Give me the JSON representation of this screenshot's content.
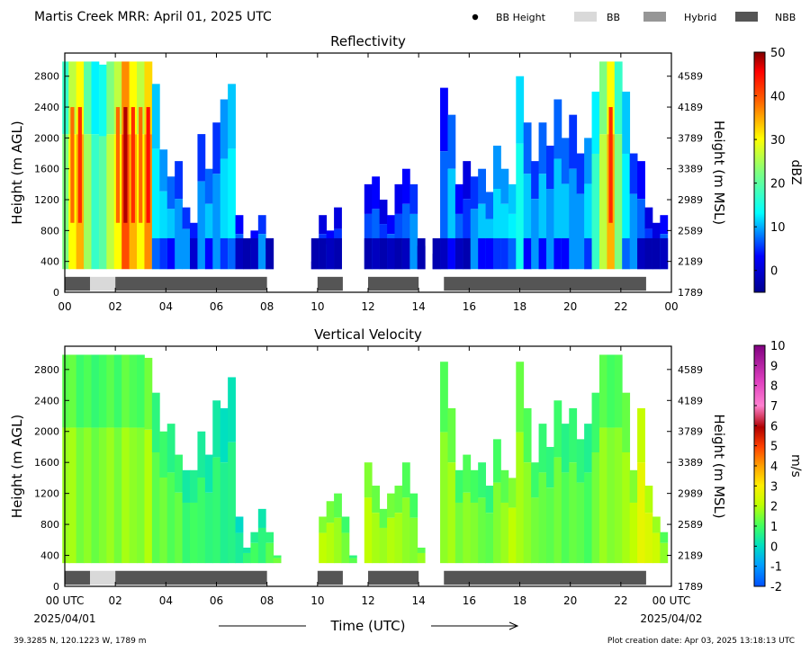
{
  "header": {
    "title": "Martis Creek MRR:  April 01, 2025 UTC"
  },
  "legend": [
    {
      "label": "BB Height",
      "color": "#000000",
      "kind": "dot"
    },
    {
      "label": "BB",
      "color": "#d9d9d9",
      "kind": "bar"
    },
    {
      "label": "Hybrid",
      "color": "#969696",
      "kind": "bar"
    },
    {
      "label": "NBB",
      "color": "#555555",
      "kind": "bar"
    }
  ],
  "chart_data": [
    {
      "type": "heatmap",
      "title": "Reflectivity",
      "ylabel": "Height (m AGL)",
      "ylabel_right": "Height (m MSL)",
      "colorbar_label": "dBZ",
      "x_ticks": [
        "00",
        "02",
        "04",
        "06",
        "08",
        "10",
        "12",
        "14",
        "16",
        "18",
        "20",
        "22",
        "00"
      ],
      "xlim": [
        0,
        24
      ],
      "ylim": [
        0,
        3100
      ],
      "y_ticks": [
        0,
        400,
        800,
        1200,
        1600,
        2000,
        2400,
        2800
      ],
      "y_ticks_right": [
        1789,
        2189,
        2589,
        2989,
        3389,
        3789,
        4189,
        4589
      ],
      "colorbar_ticks": [
        0,
        10,
        20,
        30,
        40,
        50
      ],
      "colorbar_range": [
        -5,
        50
      ],
      "echo_tops": [
        {
          "t": 0.05,
          "top": 2990,
          "val": 22
        },
        {
          "t": 0.3,
          "top": 2990,
          "val": 30
        },
        {
          "t": 0.6,
          "top": 2990,
          "val": 34
        },
        {
          "t": 0.9,
          "top": 2990,
          "val": 24
        },
        {
          "t": 1.2,
          "top": 2990,
          "val": 18
        },
        {
          "t": 1.5,
          "top": 2950,
          "val": 20
        },
        {
          "t": 1.8,
          "top": 2990,
          "val": 26
        },
        {
          "t": 2.1,
          "top": 2990,
          "val": 30
        },
        {
          "t": 2.4,
          "top": 2990,
          "val": 40
        },
        {
          "t": 2.7,
          "top": 2990,
          "val": 34
        },
        {
          "t": 3.0,
          "top": 2990,
          "val": 30
        },
        {
          "t": 3.3,
          "top": 2990,
          "val": 36
        },
        {
          "t": 3.6,
          "top": 2700,
          "val": 14
        },
        {
          "t": 3.9,
          "top": 1850,
          "val": 12
        },
        {
          "t": 4.2,
          "top": 1500,
          "val": 10
        },
        {
          "t": 4.5,
          "top": 1700,
          "val": 8
        },
        {
          "t": 4.8,
          "top": 1100,
          "val": 8
        },
        {
          "t": 5.1,
          "top": 900,
          "val": 7
        },
        {
          "t": 5.4,
          "top": 2050,
          "val": 8
        },
        {
          "t": 5.7,
          "top": 1600,
          "val": 10
        },
        {
          "t": 6.0,
          "top": 2200,
          "val": 8
        },
        {
          "t": 6.3,
          "top": 2500,
          "val": 12
        },
        {
          "t": 6.6,
          "top": 2700,
          "val": 14
        },
        {
          "t": 6.9,
          "top": 1000,
          "val": 6
        },
        {
          "t": 7.2,
          "top": 400,
          "val": 4
        },
        {
          "t": 7.5,
          "top": 800,
          "val": 6
        },
        {
          "t": 7.8,
          "top": 1000,
          "val": 8
        },
        {
          "t": 8.1,
          "top": 700,
          "val": 4
        },
        {
          "t": 8.4,
          "top": 0,
          "val": 0
        },
        {
          "t": 8.7,
          "top": 0,
          "val": 0
        },
        {
          "t": 9.0,
          "top": 0,
          "val": 0
        },
        {
          "t": 9.3,
          "top": 0,
          "val": 0
        },
        {
          "t": 9.6,
          "top": 0,
          "val": 0
        },
        {
          "t": 9.9,
          "top": 400,
          "val": 2
        },
        {
          "t": 10.2,
          "top": 1000,
          "val": 4
        },
        {
          "t": 10.5,
          "top": 800,
          "val": 6
        },
        {
          "t": 10.8,
          "top": 1100,
          "val": 4
        },
        {
          "t": 11.1,
          "top": 0,
          "val": 0
        },
        {
          "t": 11.4,
          "top": 0,
          "val": 0
        },
        {
          "t": 11.7,
          "top": 0,
          "val": 0
        },
        {
          "t": 12.0,
          "top": 1400,
          "val": 5
        },
        {
          "t": 12.3,
          "top": 1500,
          "val": 6
        },
        {
          "t": 12.6,
          "top": 1200,
          "val": 4
        },
        {
          "t": 12.9,
          "top": 1000,
          "val": 6
        },
        {
          "t": 13.2,
          "top": 1400,
          "val": 5
        },
        {
          "t": 13.5,
          "top": 1600,
          "val": 6
        },
        {
          "t": 13.8,
          "top": 1400,
          "val": 8
        },
        {
          "t": 14.1,
          "top": 600,
          "val": 2
        },
        {
          "t": 14.4,
          "top": 0,
          "val": 0
        },
        {
          "t": 14.7,
          "top": 500,
          "val": 2
        },
        {
          "t": 15.0,
          "top": 2650,
          "val": 6
        },
        {
          "t": 15.3,
          "top": 2300,
          "val": 10
        },
        {
          "t": 15.6,
          "top": 1400,
          "val": 6
        },
        {
          "t": 15.9,
          "top": 1700,
          "val": 4
        },
        {
          "t": 16.2,
          "top": 1500,
          "val": 8
        },
        {
          "t": 16.5,
          "top": 1600,
          "val": 10
        },
        {
          "t": 16.8,
          "top": 1300,
          "val": 10
        },
        {
          "t": 17.1,
          "top": 1900,
          "val": 12
        },
        {
          "t": 17.4,
          "top": 1600,
          "val": 12
        },
        {
          "t": 17.7,
          "top": 1400,
          "val": 14
        },
        {
          "t": 18.0,
          "top": 2800,
          "val": 16
        },
        {
          "t": 18.3,
          "top": 2200,
          "val": 10
        },
        {
          "t": 18.6,
          "top": 1700,
          "val": 8
        },
        {
          "t": 18.9,
          "top": 2200,
          "val": 10
        },
        {
          "t": 19.2,
          "top": 1900,
          "val": 8
        },
        {
          "t": 19.5,
          "top": 2500,
          "val": 10
        },
        {
          "t": 19.8,
          "top": 2000,
          "val": 10
        },
        {
          "t": 20.1,
          "top": 2300,
          "val": 8
        },
        {
          "t": 20.4,
          "top": 1800,
          "val": 8
        },
        {
          "t": 20.7,
          "top": 2000,
          "val": 12
        },
        {
          "t": 21.0,
          "top": 2600,
          "val": 18
        },
        {
          "t": 21.3,
          "top": 2990,
          "val": 26
        },
        {
          "t": 21.6,
          "top": 2990,
          "val": 34
        },
        {
          "t": 21.9,
          "top": 2990,
          "val": 22
        },
        {
          "t": 22.2,
          "top": 2600,
          "val": 14
        },
        {
          "t": 22.5,
          "top": 1800,
          "val": 8
        },
        {
          "t": 22.8,
          "top": 1700,
          "val": 6
        },
        {
          "t": 23.1,
          "top": 1100,
          "val": 4
        },
        {
          "t": 23.4,
          "top": 900,
          "val": 4
        },
        {
          "t": 23.7,
          "top": 1000,
          "val": 6
        }
      ],
      "bb_segments": [
        {
          "start": 0.0,
          "end": 1.0,
          "type": "NBB"
        },
        {
          "start": 1.0,
          "end": 2.0,
          "type": "BB"
        },
        {
          "start": 2.0,
          "end": 8.0,
          "type": "NBB"
        },
        {
          "start": 10.0,
          "end": 11.0,
          "type": "NBB"
        },
        {
          "start": 12.0,
          "end": 14.0,
          "type": "NBB"
        },
        {
          "start": 15.0,
          "end": 23.0,
          "type": "NBB"
        }
      ]
    },
    {
      "type": "heatmap",
      "title": "Vertical Velocity",
      "ylabel": "Height (m AGL)",
      "ylabel_right": "Height (m MSL)",
      "colorbar_label": "m/s",
      "x_ticks": [
        "00 UTC",
        "02",
        "04",
        "06",
        "08",
        "10",
        "12",
        "14",
        "16",
        "18",
        "20",
        "22",
        "00 UTC"
      ],
      "x_date_left": "2025/04/01",
      "x_date_right": "2025/04/02",
      "xlabel": "Time (UTC)",
      "xlim": [
        0,
        24
      ],
      "ylim": [
        0,
        3100
      ],
      "y_ticks": [
        0,
        400,
        800,
        1200,
        1600,
        2000,
        2400,
        2800
      ],
      "y_ticks_right": [
        1789,
        2189,
        2589,
        2989,
        3389,
        3789,
        4189,
        4589
      ],
      "colorbar_ticks": [
        -2,
        -1,
        0,
        1,
        2,
        3,
        4,
        5,
        6,
        7,
        8,
        9,
        10
      ],
      "colorbar_range": [
        -2,
        10
      ],
      "echo_tops": [
        {
          "t": 0.05,
          "top": 2990,
          "val": 1.5
        },
        {
          "t": 0.3,
          "top": 2990,
          "val": 1.6
        },
        {
          "t": 0.6,
          "top": 2990,
          "val": 1.2
        },
        {
          "t": 0.9,
          "top": 2990,
          "val": 1.4
        },
        {
          "t": 1.2,
          "top": 2990,
          "val": 1.1
        },
        {
          "t": 1.5,
          "top": 2990,
          "val": 1.3
        },
        {
          "t": 1.8,
          "top": 2990,
          "val": 1.5
        },
        {
          "t": 2.1,
          "top": 2990,
          "val": 1.2
        },
        {
          "t": 2.4,
          "top": 2990,
          "val": 1.6
        },
        {
          "t": 2.7,
          "top": 2990,
          "val": 1.4
        },
        {
          "t": 3.0,
          "top": 2990,
          "val": 1.3
        },
        {
          "t": 3.3,
          "top": 2950,
          "val": 1.7
        },
        {
          "t": 3.6,
          "top": 2500,
          "val": 1.0
        },
        {
          "t": 3.9,
          "top": 2000,
          "val": 1.2
        },
        {
          "t": 4.2,
          "top": 2100,
          "val": 0.9
        },
        {
          "t": 4.5,
          "top": 1700,
          "val": 1.1
        },
        {
          "t": 4.8,
          "top": 1500,
          "val": 0.6
        },
        {
          "t": 5.1,
          "top": 1500,
          "val": 0.8
        },
        {
          "t": 5.4,
          "top": 2000,
          "val": 0.7
        },
        {
          "t": 5.7,
          "top": 1700,
          "val": 0.5
        },
        {
          "t": 6.0,
          "top": 2400,
          "val": 0.6
        },
        {
          "t": 6.3,
          "top": 2300,
          "val": 0.3
        },
        {
          "t": 6.6,
          "top": 2700,
          "val": 0.4
        },
        {
          "t": 6.9,
          "top": 900,
          "val": 0.2
        },
        {
          "t": 7.2,
          "top": 500,
          "val": 0.6
        },
        {
          "t": 7.5,
          "top": 700,
          "val": 0.8
        },
        {
          "t": 7.8,
          "top": 1000,
          "val": 0.5
        },
        {
          "t": 8.1,
          "top": 700,
          "val": 1.0
        },
        {
          "t": 8.4,
          "top": 400,
          "val": 1.2
        },
        {
          "t": 8.7,
          "top": 0,
          "val": 0
        },
        {
          "t": 9.0,
          "top": 0,
          "val": 0
        },
        {
          "t": 9.3,
          "top": 0,
          "val": 0
        },
        {
          "t": 9.6,
          "top": 0,
          "val": 0
        },
        {
          "t": 9.9,
          "top": 300,
          "val": 1.2
        },
        {
          "t": 10.2,
          "top": 900,
          "val": 1.8
        },
        {
          "t": 10.5,
          "top": 1100,
          "val": 1.7
        },
        {
          "t": 10.8,
          "top": 1200,
          "val": 1.5
        },
        {
          "t": 11.1,
          "top": 900,
          "val": 1.2
        },
        {
          "t": 11.4,
          "top": 400,
          "val": 1.0
        },
        {
          "t": 11.7,
          "top": 0,
          "val": 0
        },
        {
          "t": 12.0,
          "top": 1600,
          "val": 1.8
        },
        {
          "t": 12.3,
          "top": 1300,
          "val": 1.6
        },
        {
          "t": 12.6,
          "top": 1000,
          "val": 1.5
        },
        {
          "t": 12.9,
          "top": 1200,
          "val": 1.7
        },
        {
          "t": 13.2,
          "top": 1300,
          "val": 1.6
        },
        {
          "t": 13.5,
          "top": 1600,
          "val": 1.4
        },
        {
          "t": 13.8,
          "top": 1200,
          "val": 1.3
        },
        {
          "t": 14.1,
          "top": 500,
          "val": 1.5
        },
        {
          "t": 14.4,
          "top": 0,
          "val": 0
        },
        {
          "t": 14.7,
          "top": 300,
          "val": 1.0
        },
        {
          "t": 15.0,
          "top": 2900,
          "val": 1.4
        },
        {
          "t": 15.3,
          "top": 2300,
          "val": 1.6
        },
        {
          "t": 15.6,
          "top": 1500,
          "val": 1.2
        },
        {
          "t": 15.9,
          "top": 1700,
          "val": 1.4
        },
        {
          "t": 16.2,
          "top": 1500,
          "val": 1.3
        },
        {
          "t": 16.5,
          "top": 1600,
          "val": 1.1
        },
        {
          "t": 16.8,
          "top": 1300,
          "val": 1.0
        },
        {
          "t": 17.1,
          "top": 1900,
          "val": 1.3
        },
        {
          "t": 17.4,
          "top": 1500,
          "val": 1.5
        },
        {
          "t": 17.7,
          "top": 1400,
          "val": 1.8
        },
        {
          "t": 18.0,
          "top": 2900,
          "val": 1.6
        },
        {
          "t": 18.3,
          "top": 2300,
          "val": 1.4
        },
        {
          "t": 18.6,
          "top": 1600,
          "val": 1.2
        },
        {
          "t": 18.9,
          "top": 2100,
          "val": 1.1
        },
        {
          "t": 19.2,
          "top": 1800,
          "val": 1.0
        },
        {
          "t": 19.5,
          "top": 2400,
          "val": 1.2
        },
        {
          "t": 19.8,
          "top": 2100,
          "val": 0.9
        },
        {
          "t": 20.1,
          "top": 2300,
          "val": 1.1
        },
        {
          "t": 20.4,
          "top": 1900,
          "val": 1.0
        },
        {
          "t": 20.7,
          "top": 2100,
          "val": 0.8
        },
        {
          "t": 21.0,
          "top": 2500,
          "val": 1.2
        },
        {
          "t": 21.3,
          "top": 2990,
          "val": 1.5
        },
        {
          "t": 21.6,
          "top": 2990,
          "val": 1.3
        },
        {
          "t": 21.9,
          "top": 2990,
          "val": 1.4
        },
        {
          "t": 22.2,
          "top": 2500,
          "val": 1.6
        },
        {
          "t": 22.5,
          "top": 1500,
          "val": 1.8
        },
        {
          "t": 22.8,
          "top": 2300,
          "val": 2.4
        },
        {
          "t": 23.1,
          "top": 1300,
          "val": 2.2
        },
        {
          "t": 23.4,
          "top": 900,
          "val": 2.0
        },
        {
          "t": 23.7,
          "top": 700,
          "val": 1.4
        }
      ],
      "bb_segments": [
        {
          "start": 0.0,
          "end": 1.0,
          "type": "NBB"
        },
        {
          "start": 1.0,
          "end": 2.0,
          "type": "BB"
        },
        {
          "start": 2.0,
          "end": 8.0,
          "type": "NBB"
        },
        {
          "start": 10.0,
          "end": 11.0,
          "type": "NBB"
        },
        {
          "start": 12.0,
          "end": 14.0,
          "type": "NBB"
        },
        {
          "start": 15.0,
          "end": 23.0,
          "type": "NBB"
        }
      ]
    }
  ],
  "footer": {
    "location": "39.3285 N, 120.1223 W, 1789 m",
    "creation": "Plot creation date: Apr 03, 2025 13:18:13 UTC"
  }
}
